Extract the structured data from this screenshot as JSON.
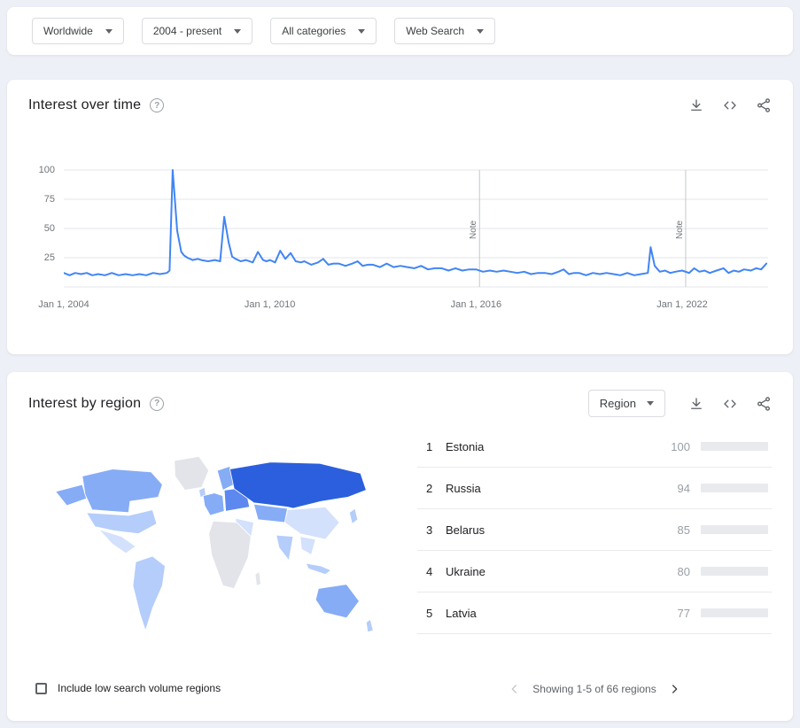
{
  "page": {
    "bg": "#eef0f7",
    "accent": "#4285f4"
  },
  "icons": {
    "help_glyph": "?"
  },
  "filter_bar": {
    "chips": [
      {
        "label": "Worldwide"
      },
      {
        "label": "2004 - present"
      },
      {
        "label": "All categories"
      },
      {
        "label": "Web Search"
      }
    ]
  },
  "interest_over_time": {
    "title": "Interest over time"
  },
  "chart_data": {
    "type": "line",
    "title": "Interest over time",
    "xlabel": "",
    "ylabel": "",
    "x_range": [
      2004,
      2024.5
    ],
    "y_range": [
      0,
      100
    ],
    "y_ticks": [
      100,
      75,
      50,
      25
    ],
    "x_ticks": [
      {
        "t": 2004,
        "label": "Jan 1, 2004"
      },
      {
        "t": 2010,
        "label": "Jan 1, 2010"
      },
      {
        "t": 2016,
        "label": "Jan 1, 2016"
      },
      {
        "t": 2022,
        "label": "Jan 1, 2022"
      }
    ],
    "notes": [
      {
        "t": 2016.1,
        "label": "Note"
      },
      {
        "t": 2022.1,
        "label": "Note"
      }
    ],
    "grid": true,
    "legend": "none",
    "series": [
      {
        "name": "Interest",
        "color": "#4285f4",
        "points": [
          [
            2004.0,
            12
          ],
          [
            2004.17,
            10
          ],
          [
            2004.33,
            12
          ],
          [
            2004.5,
            11
          ],
          [
            2004.67,
            12
          ],
          [
            2004.83,
            10
          ],
          [
            2005.0,
            11
          ],
          [
            2005.2,
            10
          ],
          [
            2005.4,
            12
          ],
          [
            2005.6,
            10
          ],
          [
            2005.8,
            11
          ],
          [
            2006.0,
            10
          ],
          [
            2006.2,
            11
          ],
          [
            2006.4,
            10
          ],
          [
            2006.6,
            12
          ],
          [
            2006.8,
            11
          ],
          [
            2007.0,
            12
          ],
          [
            2007.08,
            14
          ],
          [
            2007.17,
            100
          ],
          [
            2007.3,
            48
          ],
          [
            2007.42,
            30
          ],
          [
            2007.5,
            27
          ],
          [
            2007.6,
            25
          ],
          [
            2007.75,
            23
          ],
          [
            2007.9,
            24
          ],
          [
            2008.0,
            23
          ],
          [
            2008.2,
            22
          ],
          [
            2008.4,
            23
          ],
          [
            2008.55,
            22
          ],
          [
            2008.67,
            60
          ],
          [
            2008.8,
            38
          ],
          [
            2008.9,
            26
          ],
          [
            2009.0,
            24
          ],
          [
            2009.15,
            22
          ],
          [
            2009.3,
            23
          ],
          [
            2009.5,
            21
          ],
          [
            2009.65,
            30
          ],
          [
            2009.8,
            23
          ],
          [
            2009.9,
            22
          ],
          [
            2010.0,
            23
          ],
          [
            2010.15,
            21
          ],
          [
            2010.3,
            31
          ],
          [
            2010.45,
            24
          ],
          [
            2010.6,
            29
          ],
          [
            2010.75,
            22
          ],
          [
            2010.9,
            21
          ],
          [
            2011.0,
            22
          ],
          [
            2011.2,
            19
          ],
          [
            2011.4,
            21
          ],
          [
            2011.55,
            24
          ],
          [
            2011.7,
            19
          ],
          [
            2011.85,
            20
          ],
          [
            2012.0,
            20
          ],
          [
            2012.2,
            18
          ],
          [
            2012.4,
            20
          ],
          [
            2012.55,
            22
          ],
          [
            2012.7,
            18
          ],
          [
            2012.85,
            19
          ],
          [
            2013.0,
            19
          ],
          [
            2013.2,
            17
          ],
          [
            2013.4,
            20
          ],
          [
            2013.6,
            17
          ],
          [
            2013.8,
            18
          ],
          [
            2014.0,
            17
          ],
          [
            2014.2,
            16
          ],
          [
            2014.4,
            18
          ],
          [
            2014.6,
            15
          ],
          [
            2014.8,
            16
          ],
          [
            2015.0,
            16
          ],
          [
            2015.2,
            14
          ],
          [
            2015.4,
            16
          ],
          [
            2015.6,
            14
          ],
          [
            2015.8,
            15
          ],
          [
            2016.0,
            15
          ],
          [
            2016.2,
            13
          ],
          [
            2016.4,
            14
          ],
          [
            2016.6,
            13
          ],
          [
            2016.8,
            14
          ],
          [
            2017.0,
            13
          ],
          [
            2017.2,
            12
          ],
          [
            2017.4,
            13
          ],
          [
            2017.6,
            11
          ],
          [
            2017.8,
            12
          ],
          [
            2018.0,
            12
          ],
          [
            2018.2,
            11
          ],
          [
            2018.4,
            13
          ],
          [
            2018.55,
            15
          ],
          [
            2018.7,
            11
          ],
          [
            2018.85,
            12
          ],
          [
            2019.0,
            12
          ],
          [
            2019.2,
            10
          ],
          [
            2019.4,
            12
          ],
          [
            2019.6,
            11
          ],
          [
            2019.8,
            12
          ],
          [
            2020.0,
            11
          ],
          [
            2020.2,
            10
          ],
          [
            2020.4,
            12
          ],
          [
            2020.6,
            10
          ],
          [
            2020.8,
            11
          ],
          [
            2021.0,
            12
          ],
          [
            2021.08,
            34
          ],
          [
            2021.2,
            18
          ],
          [
            2021.35,
            13
          ],
          [
            2021.5,
            14
          ],
          [
            2021.65,
            12
          ],
          [
            2021.8,
            13
          ],
          [
            2022.0,
            14
          ],
          [
            2022.2,
            12
          ],
          [
            2022.35,
            16
          ],
          [
            2022.5,
            13
          ],
          [
            2022.65,
            14
          ],
          [
            2022.8,
            12
          ],
          [
            2023.0,
            14
          ],
          [
            2023.2,
            16
          ],
          [
            2023.35,
            12
          ],
          [
            2023.5,
            14
          ],
          [
            2023.65,
            13
          ],
          [
            2023.8,
            15
          ],
          [
            2024.0,
            14
          ],
          [
            2024.15,
            16
          ],
          [
            2024.3,
            15
          ],
          [
            2024.45,
            20
          ]
        ]
      }
    ]
  },
  "interest_by_region": {
    "title": "Interest by region",
    "region_dropdown_label": "Region",
    "include_low_volume_label": "Include low search volume regions",
    "pagination_text": "Showing 1-5 of 66 regions",
    "bar_color": "#4e86f7",
    "map_palette": {
      "s1": "#2b5fdd",
      "s2": "#5c88ef",
      "s3": "#86acf6",
      "s4": "#b4cdfa",
      "s5": "#d3e1fc",
      "none": "#e2e4e9"
    },
    "list": [
      {
        "rank": 1,
        "name": "Estonia",
        "value": 100
      },
      {
        "rank": 2,
        "name": "Russia",
        "value": 94
      },
      {
        "rank": 3,
        "name": "Belarus",
        "value": 85
      },
      {
        "rank": 4,
        "name": "Ukraine",
        "value": 80
      },
      {
        "rank": 5,
        "name": "Latvia",
        "value": 77
      }
    ]
  }
}
